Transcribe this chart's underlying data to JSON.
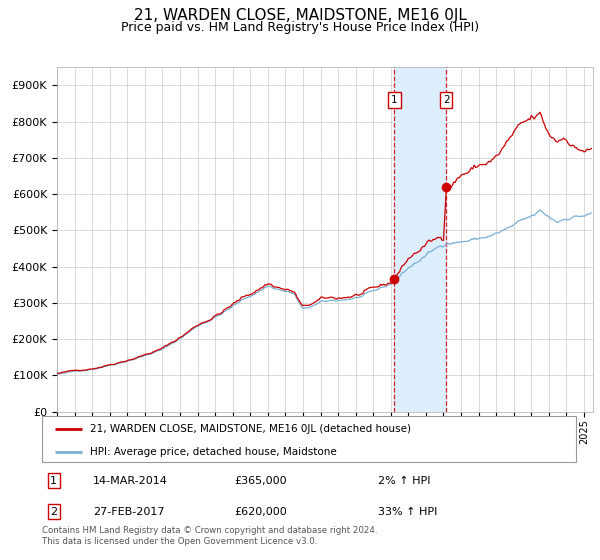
{
  "title": "21, WARDEN CLOSE, MAIDSTONE, ME16 0JL",
  "subtitle": "Price paid vs. HM Land Registry's House Price Index (HPI)",
  "ylim": [
    0,
    950000
  ],
  "yticks": [
    0,
    100000,
    200000,
    300000,
    400000,
    500000,
    600000,
    700000,
    800000,
    900000
  ],
  "ytick_labels": [
    "£0",
    "£100K",
    "£200K",
    "£300K",
    "£400K",
    "£500K",
    "£600K",
    "£700K",
    "£800K",
    "£900K"
  ],
  "xlim_start": 1995.0,
  "xlim_end": 2025.5,
  "red_line_color": "#cc0000",
  "blue_line_color": "#7bafd4",
  "transaction1_date": 2014.2,
  "transaction1_price": 365000,
  "transaction2_date": 2017.15,
  "transaction2_price": 620000,
  "shaded_region_color": "#ddeeff",
  "dashed_line_color": "#cc0000",
  "legend_line1": "21, WARDEN CLOSE, MAIDSTONE, ME16 0JL (detached house)",
  "legend_line2": "HPI: Average price, detached house, Maidstone",
  "table_row1": [
    "1",
    "14-MAR-2014",
    "£365,000",
    "2% ↑ HPI"
  ],
  "table_row2": [
    "2",
    "27-FEB-2017",
    "£620,000",
    "33% ↑ HPI"
  ],
  "footer": "Contains HM Land Registry data © Crown copyright and database right 2024.\nThis data is licensed under the Open Government Licence v3.0.",
  "background_color": "#ffffff",
  "grid_color": "#cccccc",
  "title_fontsize": 11,
  "subtitle_fontsize": 9,
  "tick_fontsize": 8
}
